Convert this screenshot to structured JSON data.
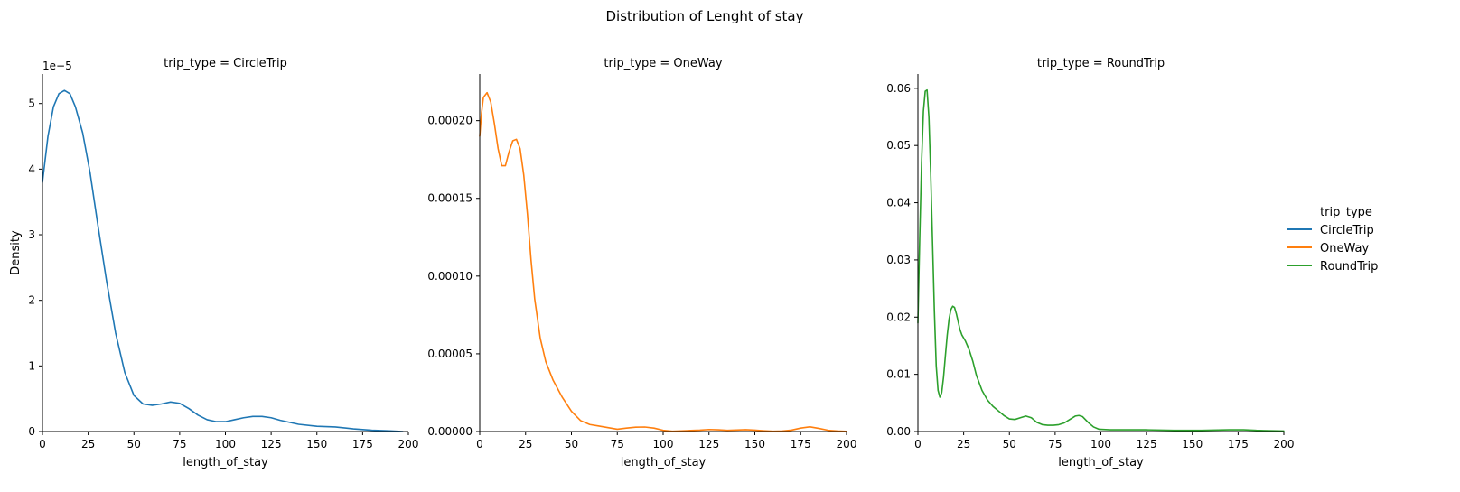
{
  "figure": {
    "title": "Distribution of Lenght of stay"
  },
  "legend": {
    "title": "trip_type",
    "placement": "right",
    "entries": [
      {
        "label": "CircleTrip",
        "color": "#1f77b4"
      },
      {
        "label": "OneWay",
        "color": "#ff7f0e"
      },
      {
        "label": "RoundTrip",
        "color": "#2ca02c"
      }
    ]
  },
  "chart_data": [
    {
      "type": "line",
      "title": "trip_type = CircleTrip",
      "xlabel": "length_of_stay",
      "ylabel": "Density",
      "offset_label": "1e−5",
      "xlim": [
        0,
        200
      ],
      "ylim": [
        0,
        5.45
      ],
      "x_ticks": [
        0,
        25,
        50,
        75,
        100,
        125,
        150,
        175,
        200
      ],
      "x_tick_labels": [
        "0",
        "25",
        "50",
        "75",
        "100",
        "125",
        "150",
        "175",
        "200"
      ],
      "y_ticks": [
        0,
        1,
        2,
        3,
        4,
        5
      ],
      "y_tick_labels": [
        "0",
        "1",
        "2",
        "3",
        "4",
        "5"
      ],
      "grid": false,
      "series": [
        {
          "name": "CircleTrip",
          "color": "#1f77b4",
          "x": [
            0,
            3,
            6,
            9,
            12,
            15,
            18,
            22,
            26,
            30,
            35,
            40,
            45,
            50,
            55,
            60,
            65,
            70,
            75,
            80,
            85,
            90,
            95,
            100,
            105,
            110,
            115,
            120,
            125,
            130,
            140,
            150,
            160,
            170,
            180,
            190,
            197
          ],
          "y": [
            3.8,
            4.5,
            4.95,
            5.15,
            5.2,
            5.15,
            4.95,
            4.55,
            3.95,
            3.2,
            2.3,
            1.5,
            0.9,
            0.55,
            0.42,
            0.4,
            0.42,
            0.45,
            0.43,
            0.35,
            0.25,
            0.18,
            0.15,
            0.15,
            0.18,
            0.21,
            0.23,
            0.23,
            0.21,
            0.17,
            0.11,
            0.08,
            0.07,
            0.04,
            0.02,
            0.01,
            0.0
          ]
        }
      ]
    },
    {
      "type": "line",
      "title": "trip_type = OneWay",
      "xlabel": "length_of_stay",
      "ylabel": "",
      "offset_label": "",
      "xlim": [
        0,
        200
      ],
      "ylim": [
        0,
        0.00023
      ],
      "x_ticks": [
        0,
        25,
        50,
        75,
        100,
        125,
        150,
        175,
        200
      ],
      "x_tick_labels": [
        "0",
        "25",
        "50",
        "75",
        "100",
        "125",
        "150",
        "175",
        "200"
      ],
      "y_ticks": [
        0,
        5e-05,
        0.0001,
        0.00015,
        0.0002
      ],
      "y_tick_labels": [
        "0.00000",
        "0.00005",
        "0.00010",
        "0.00015",
        "0.00020"
      ],
      "grid": false,
      "series": [
        {
          "name": "OneWay",
          "color": "#ff7f0e",
          "x": [
            0,
            1,
            2,
            4,
            6,
            8,
            10,
            12,
            14,
            16,
            18,
            20,
            22,
            24,
            26,
            28,
            30,
            33,
            36,
            40,
            45,
            50,
            55,
            60,
            65,
            70,
            75,
            80,
            85,
            90,
            95,
            100,
            105,
            110,
            115,
            120,
            125,
            130,
            135,
            140,
            145,
            150,
            155,
            160,
            165,
            170,
            175,
            180,
            185,
            190,
            195,
            200
          ],
          "y": [
            0.00019,
            0.000205,
            0.000215,
            0.000218,
            0.000212,
            0.000198,
            0.000182,
            0.000171,
            0.000171,
            0.00018,
            0.000187,
            0.000188,
            0.000182,
            0.000165,
            0.00014,
            0.00011,
            8.5e-05,
            6e-05,
            4.5e-05,
            3.3e-05,
            2.2e-05,
            1.3e-05,
            7e-06,
            4.5e-06,
            3.5e-06,
            2.5e-06,
            1.5e-06,
            2.2e-06,
            2.8e-06,
            2.9e-06,
            2.2e-06,
            8e-07,
            2e-07,
            4e-07,
            7e-07,
            9e-07,
            1.3e-06,
            1.1e-06,
            8e-07,
            1e-06,
            1.2e-06,
            9e-07,
            5e-07,
            2e-07,
            3e-07,
            9e-07,
            2.2e-06,
            3e-06,
            2e-06,
            8e-07,
            3e-07,
            1e-07
          ]
        }
      ]
    },
    {
      "type": "line",
      "title": "trip_type = RoundTrip",
      "xlabel": "length_of_stay",
      "ylabel": "",
      "offset_label": "",
      "xlim": [
        0,
        200
      ],
      "ylim": [
        0,
        0.0625
      ],
      "x_ticks": [
        0,
        25,
        50,
        75,
        100,
        125,
        150,
        175,
        200
      ],
      "x_tick_labels": [
        "0",
        "25",
        "50",
        "75",
        "100",
        "125",
        "150",
        "175",
        "200"
      ],
      "y_ticks": [
        0,
        0.01,
        0.02,
        0.03,
        0.04,
        0.05,
        0.06
      ],
      "y_tick_labels": [
        "0.00",
        "0.01",
        "0.02",
        "0.03",
        "0.04",
        "0.05",
        "0.06"
      ],
      "grid": false,
      "series": [
        {
          "name": "RoundTrip",
          "color": "#2ca02c",
          "x": [
            0,
            1,
            2,
            3,
            4,
            5,
            6,
            7,
            8,
            9,
            10,
            11,
            12,
            13,
            14,
            15,
            16,
            17,
            18,
            19,
            20,
            21,
            22,
            23,
            24,
            26,
            28,
            30,
            32,
            35,
            38,
            41,
            44,
            47,
            50,
            53,
            56,
            59,
            62,
            65,
            68,
            71,
            74,
            77,
            80,
            83,
            86,
            88,
            90,
            93,
            96,
            99,
            105,
            115,
            125,
            140,
            155,
            170,
            178,
            185,
            200
          ],
          "y": [
            0.019,
            0.034,
            0.047,
            0.056,
            0.0595,
            0.0597,
            0.055,
            0.045,
            0.033,
            0.021,
            0.0115,
            0.0072,
            0.006,
            0.0068,
            0.0095,
            0.0132,
            0.0168,
            0.0196,
            0.0213,
            0.0219,
            0.0217,
            0.0206,
            0.0192,
            0.0178,
            0.0169,
            0.0158,
            0.0143,
            0.0123,
            0.0098,
            0.0072,
            0.0055,
            0.0044,
            0.0036,
            0.0028,
            0.0022,
            0.0021,
            0.0024,
            0.0027,
            0.0024,
            0.0016,
            0.0012,
            0.0011,
            0.0011,
            0.0012,
            0.0015,
            0.0021,
            0.0027,
            0.0028,
            0.0026,
            0.0016,
            0.0008,
            0.0004,
            0.0003,
            0.0003,
            0.0003,
            0.0002,
            0.0002,
            0.0003,
            0.0003,
            0.0002,
            0.0001
          ]
        }
      ]
    }
  ]
}
